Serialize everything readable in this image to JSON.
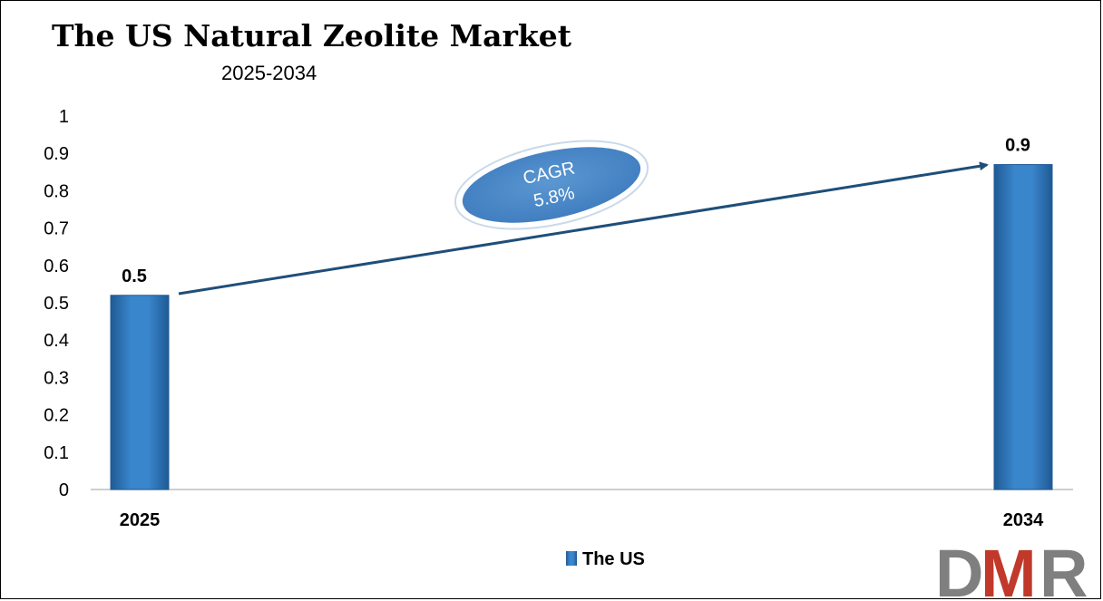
{
  "chart_data": {
    "type": "bar",
    "title": "The US Natural Zeolite Market",
    "subtitle": "2025-2034",
    "categories": [
      "2025",
      "2034"
    ],
    "series": [
      {
        "name": "The US",
        "values": [
          0.52,
          0.87
        ],
        "data_labels": [
          "0.5",
          "0.9"
        ]
      }
    ],
    "yticks": [
      "0",
      "0.1",
      "0.2",
      "0.3",
      "0.4",
      "0.5",
      "0.6",
      "0.7",
      "0.8",
      "0.9",
      "1"
    ],
    "ylim": [
      0,
      1
    ],
    "xlabel": "",
    "ylabel": "",
    "grid": false,
    "legend_position": "bottom",
    "annotation": {
      "line1": "CAGR",
      "line2": "5.8%"
    },
    "colors": {
      "bar": "#2E75B6",
      "bar_dark": "#1F5A94",
      "arrow": "#1F4E79",
      "ellipse": "#4A86C4"
    }
  },
  "logo": {
    "letters": [
      "D",
      "M",
      "R"
    ],
    "colors": [
      "#7F7F7F",
      "#C0392B",
      "#7F7F7F"
    ]
  }
}
